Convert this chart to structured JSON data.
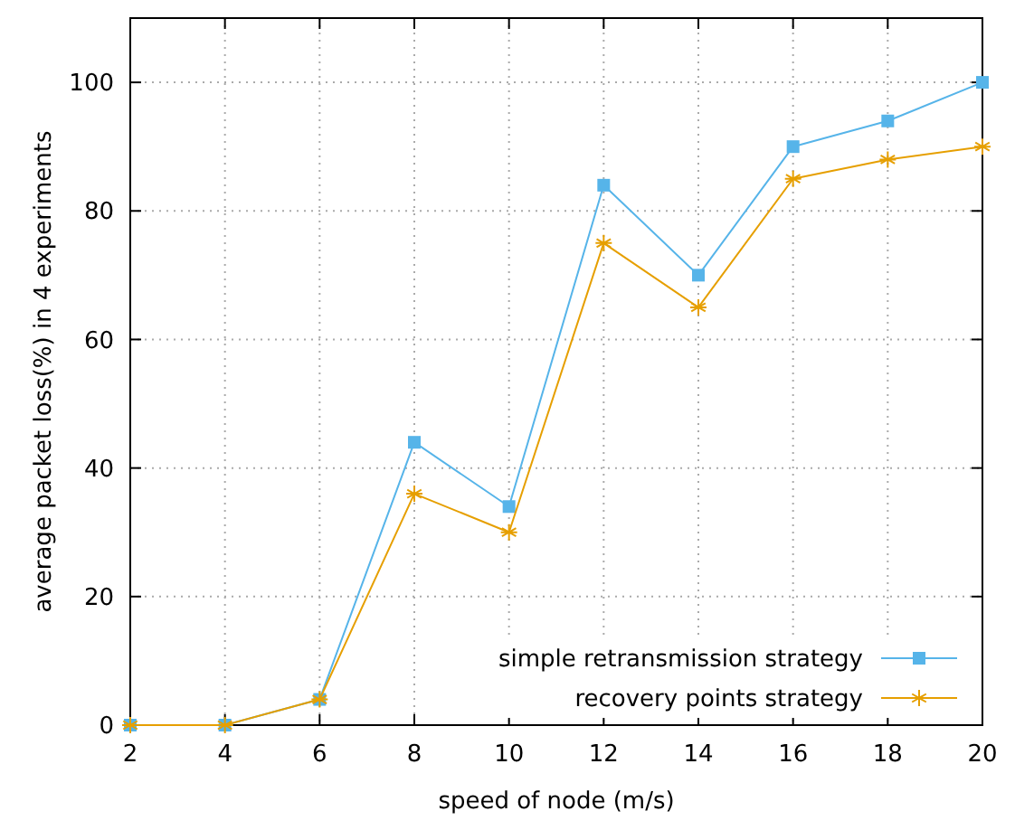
{
  "chart_data": {
    "type": "line",
    "xlabel": "speed of node (m/s)",
    "ylabel": "average packet loss(%) in 4 experiments",
    "x": [
      2,
      4,
      6,
      8,
      10,
      12,
      14,
      16,
      18,
      20
    ],
    "series": [
      {
        "name": "simple retransmission strategy",
        "color": "#56b4e9",
        "marker": "square",
        "values": [
          0,
          0,
          4,
          44,
          34,
          84,
          70,
          90,
          94,
          100
        ]
      },
      {
        "name": "recovery points strategy",
        "color": "#e69f00",
        "marker": "cross",
        "values": [
          0,
          0,
          4,
          36,
          30,
          75,
          65,
          85,
          88,
          90
        ]
      }
    ],
    "xlim": [
      2,
      20
    ],
    "xticks": [
      2,
      4,
      6,
      8,
      10,
      12,
      14,
      16,
      18,
      20
    ],
    "ylim": [
      0,
      110
    ],
    "yticks": [
      0,
      20,
      40,
      60,
      80,
      100
    ],
    "grid": true,
    "legend": "bottom right",
    "line_style": "solid"
  }
}
